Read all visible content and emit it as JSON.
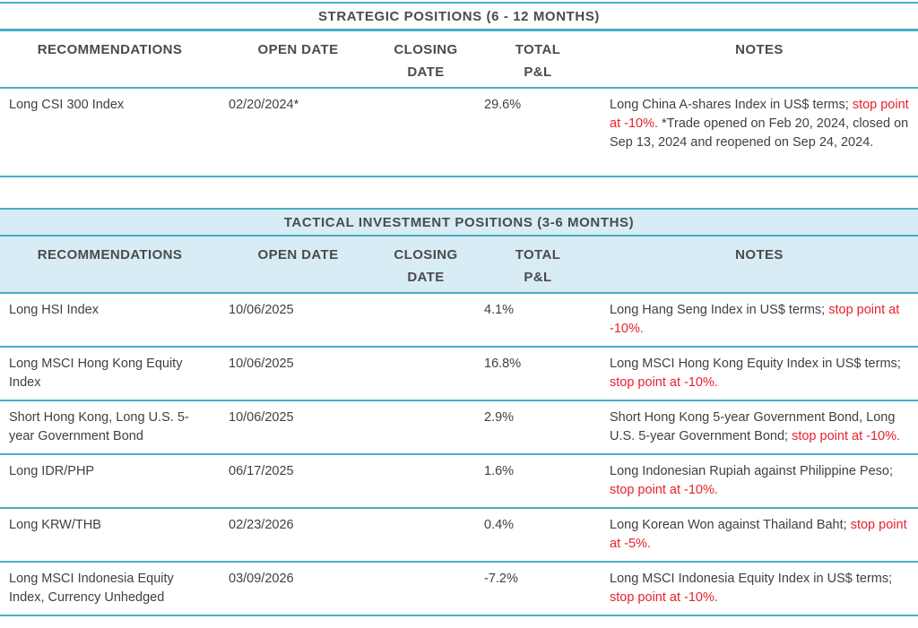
{
  "colors": {
    "accent": "#4BACC6",
    "band": "#D8ECF5",
    "heading": "#4A4B4D",
    "text": "#414042",
    "red": "#E8212D"
  },
  "strategic": {
    "title": "STRATEGIC POSITIONS (6 - 12 MONTHS)",
    "headers": [
      "RECOMMENDATIONS",
      "OPEN DATE",
      "CLOSING\nDATE",
      "TOTAL\nP&L",
      "NOTES"
    ],
    "rows": [
      {
        "recommendation": "Long CSI 300 Index",
        "open_date": "02/20/2024*",
        "closing_date": "",
        "total_pnl": "29.6%",
        "notes": [
          {
            "text": "Long China A-shares Index in US$ terms; ",
            "red": false
          },
          {
            "text": "stop point at -10%.",
            "red": true
          },
          {
            "text": " *Trade opened on Feb 20, 2024, closed on Sep 13, 2024 and reopened on Sep 24, 2024.",
            "red": false
          }
        ]
      }
    ]
  },
  "tactical": {
    "title": "TACTICAL INVESTMENT POSITIONS (3-6 MONTHS)",
    "headers": [
      "RECOMMENDATIONS",
      "OPEN DATE",
      "CLOSING\nDATE",
      "TOTAL\nP&L",
      "NOTES"
    ],
    "rows": [
      {
        "recommendation": "Long HSI Index",
        "open_date": "10/06/2025",
        "closing_date": "",
        "total_pnl": "4.1%",
        "notes": [
          {
            "text": "Long Hang Seng Index in US$ terms; ",
            "red": false
          },
          {
            "text": "stop point at -10%.",
            "red": true
          }
        ]
      },
      {
        "recommendation": "Long MSCI Hong Kong Equity Index",
        "open_date": "10/06/2025",
        "closing_date": "",
        "total_pnl": "16.8%",
        "notes": [
          {
            "text": "Long MSCI Hong Kong Equity Index in US$ terms; ",
            "red": false
          },
          {
            "text": "stop point at -10%.",
            "red": true
          }
        ]
      },
      {
        "recommendation": "Short Hong Kong, Long U.S. 5-year Government Bond",
        "open_date": "10/06/2025",
        "closing_date": "",
        "total_pnl": "2.9%",
        "notes": [
          {
            "text": "Short Hong Kong 5-year Government Bond, Long U.S. 5-year Government Bond; ",
            "red": false
          },
          {
            "text": "stop point at -10%.",
            "red": true
          }
        ]
      },
      {
        "recommendation": "Long IDR/PHP",
        "open_date": "06/17/2025",
        "closing_date": "",
        "total_pnl": "1.6%",
        "notes": [
          {
            "text": "Long Indonesian Rupiah against Philippine Peso; ",
            "red": false
          },
          {
            "text": "stop point at -10%.",
            "red": true
          }
        ]
      },
      {
        "recommendation": "Long KRW/THB",
        "open_date": "02/23/2026",
        "closing_date": "",
        "total_pnl": "0.4%",
        "notes": [
          {
            "text": "Long Korean Won against Thailand Baht; ",
            "red": false
          },
          {
            "text": "stop point at -5%.",
            "red": true
          }
        ]
      },
      {
        "recommendation": "Long MSCI Indonesia Equity Index, Currency Unhedged",
        "open_date": "03/09/2026",
        "closing_date": "",
        "total_pnl": "-7.2%",
        "notes": [
          {
            "text": "Long MSCI Indonesia Equity Index in US$ terms; ",
            "red": false
          },
          {
            "text": "stop point at -10%.",
            "red": true
          }
        ]
      }
    ]
  }
}
